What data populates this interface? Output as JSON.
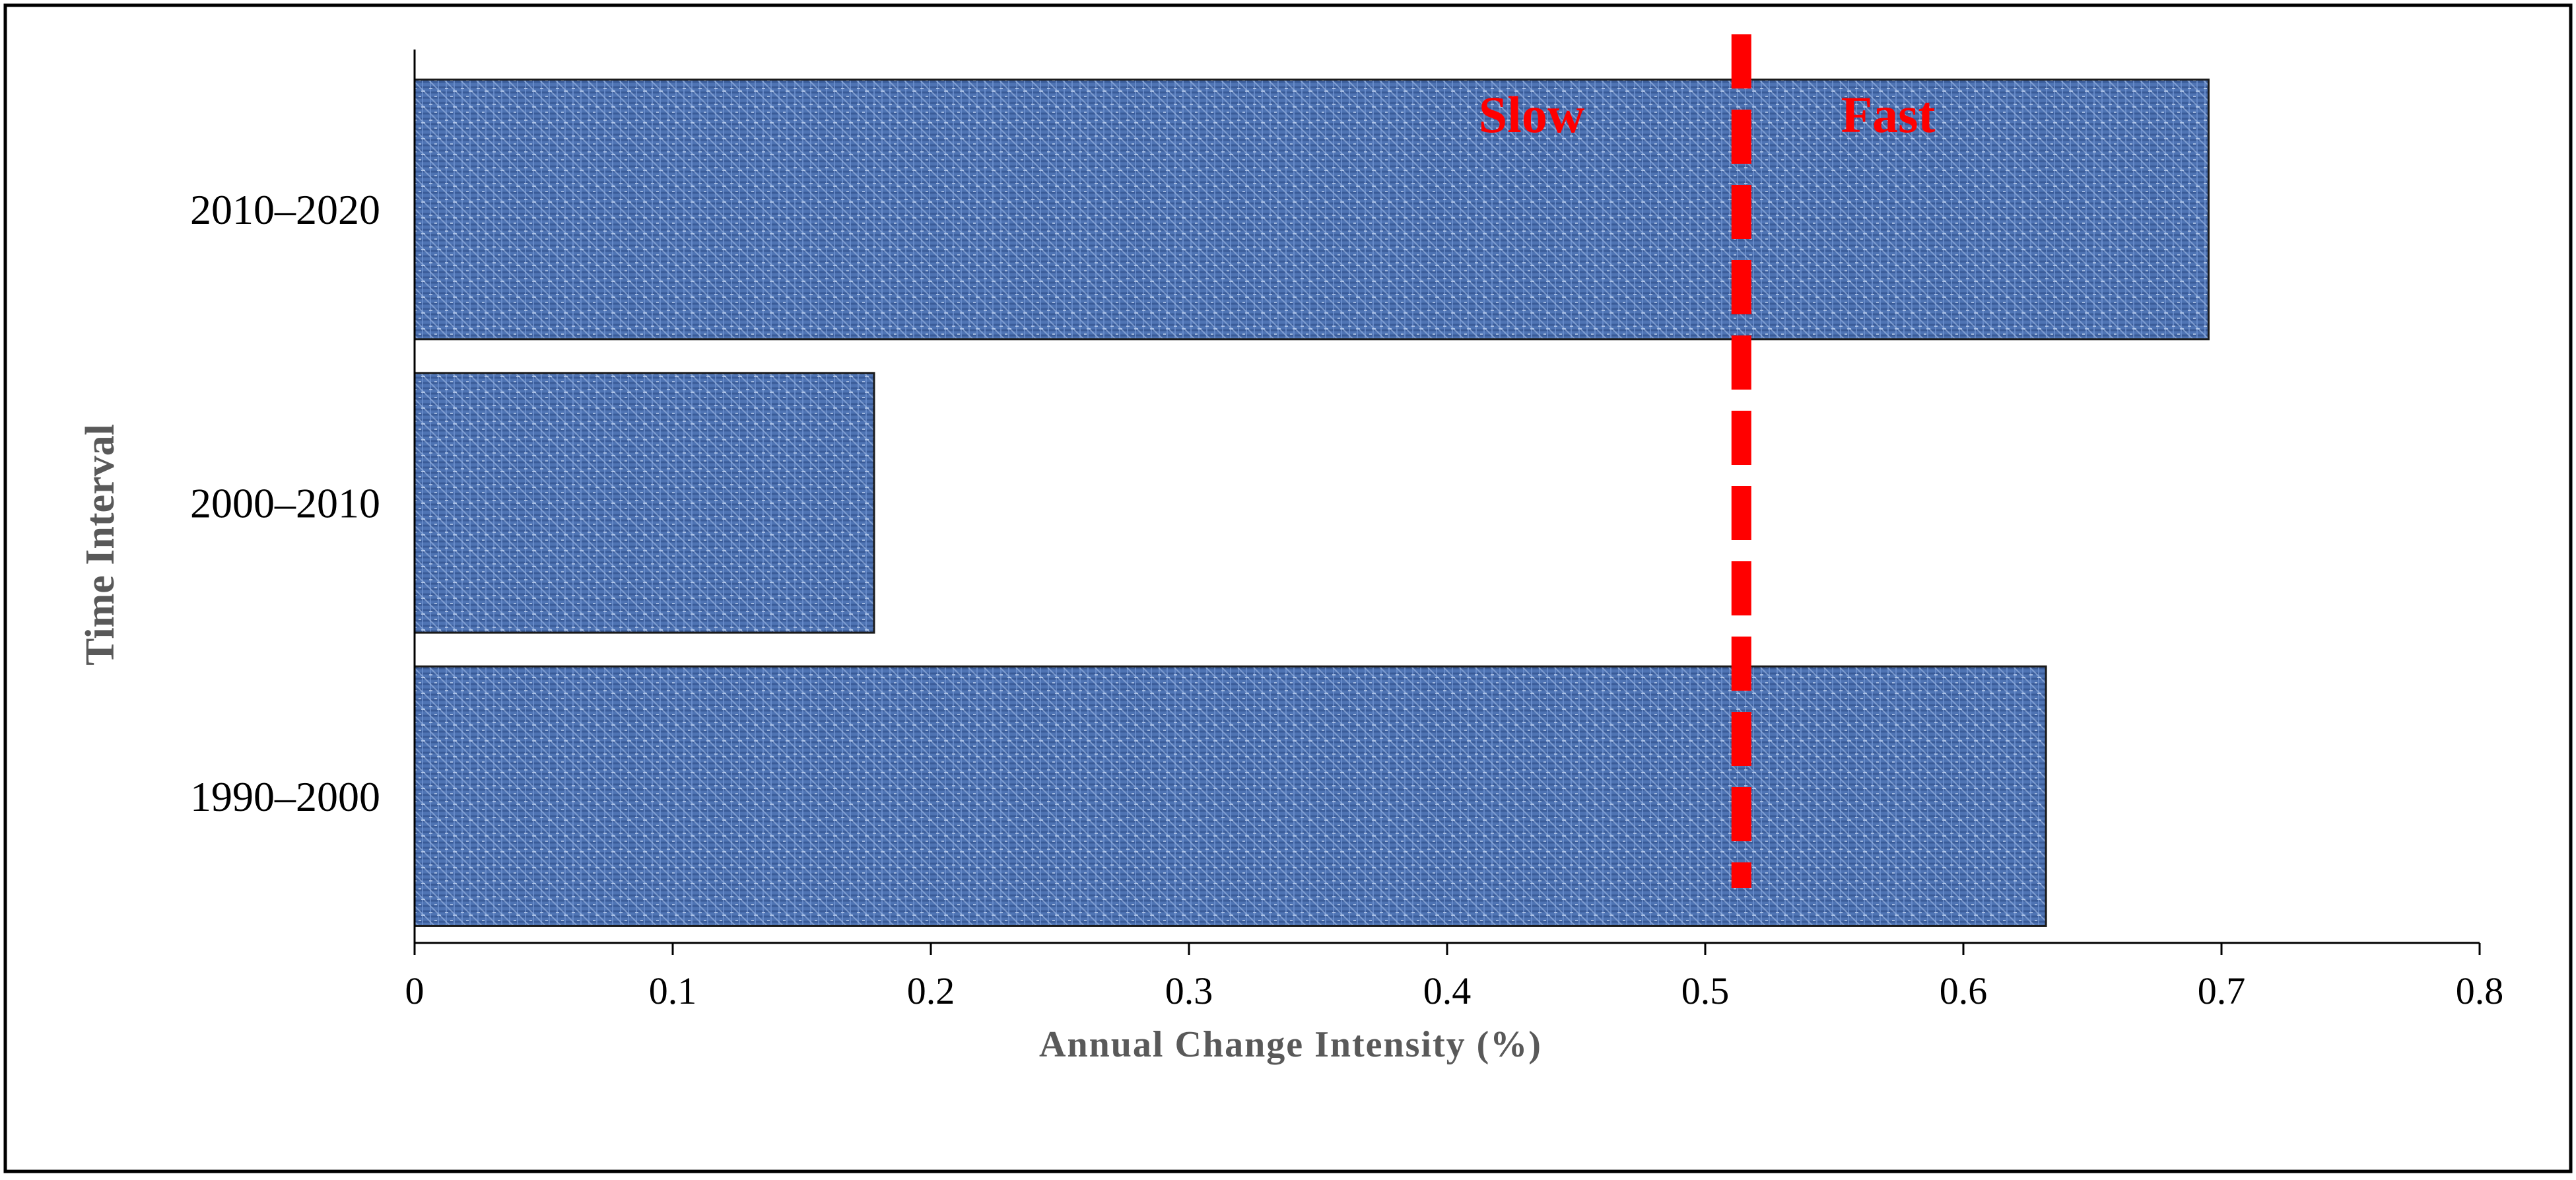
{
  "chart_data": {
    "type": "bar",
    "orientation": "horizontal",
    "categories": [
      "1990–2000",
      "2000–2010",
      "2010–2020"
    ],
    "values": [
      0.632,
      0.178,
      0.695
    ],
    "xlabel": "Annual Change Intensity (%)",
    "ylabel": "Time Interval",
    "xlim": [
      0,
      0.8
    ],
    "xticks": [
      0,
      0.1,
      0.2,
      0.3,
      0.4,
      0.5,
      0.6,
      0.7,
      0.8
    ],
    "xtick_labels": [
      "0",
      "0.1",
      "0.2",
      "0.3",
      "0.4",
      "0.5",
      "0.6",
      "0.7",
      "0.8"
    ],
    "threshold": {
      "value": 0.514,
      "color": "#ff0000",
      "style": "dashed",
      "label_left": "Slow",
      "label_right": "Fast"
    },
    "bar_color": "#5b7fbf",
    "grid": false
  }
}
